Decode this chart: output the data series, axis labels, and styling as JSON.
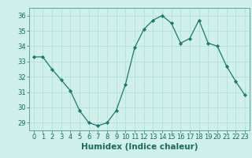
{
  "x": [
    0,
    1,
    2,
    3,
    4,
    5,
    6,
    7,
    8,
    9,
    10,
    11,
    12,
    13,
    14,
    15,
    16,
    17,
    18,
    19,
    20,
    21,
    22,
    23
  ],
  "y": [
    33.3,
    33.3,
    32.5,
    31.8,
    31.1,
    29.8,
    29.0,
    28.8,
    29.0,
    29.8,
    31.5,
    33.9,
    35.1,
    35.7,
    36.0,
    35.5,
    34.2,
    34.5,
    35.7,
    34.2,
    34.0,
    32.7,
    31.7,
    30.8
  ],
  "line_color": "#1a7a6e",
  "marker": "D",
  "marker_size": 2.2,
  "bg_color": "#cff0eb",
  "grid_color": "#aaddd8",
  "xlabel": "Humidex (Indice chaleur)",
  "xlim": [
    -0.5,
    23.5
  ],
  "ylim": [
    28.5,
    36.5
  ],
  "yticks": [
    29,
    30,
    31,
    32,
    33,
    34,
    35,
    36
  ],
  "xticks": [
    0,
    1,
    2,
    3,
    4,
    5,
    6,
    7,
    8,
    9,
    10,
    11,
    12,
    13,
    14,
    15,
    16,
    17,
    18,
    19,
    20,
    21,
    22,
    23
  ],
  "xtick_labels": [
    "0",
    "1",
    "2",
    "3",
    "4",
    "5",
    "6",
    "7",
    "8",
    "9",
    "10",
    "11",
    "12",
    "13",
    "14",
    "15",
    "16",
    "17",
    "18",
    "19",
    "20",
    "21",
    "22",
    "23"
  ],
  "tick_fontsize": 6.0,
  "xlabel_fontsize": 7.5
}
